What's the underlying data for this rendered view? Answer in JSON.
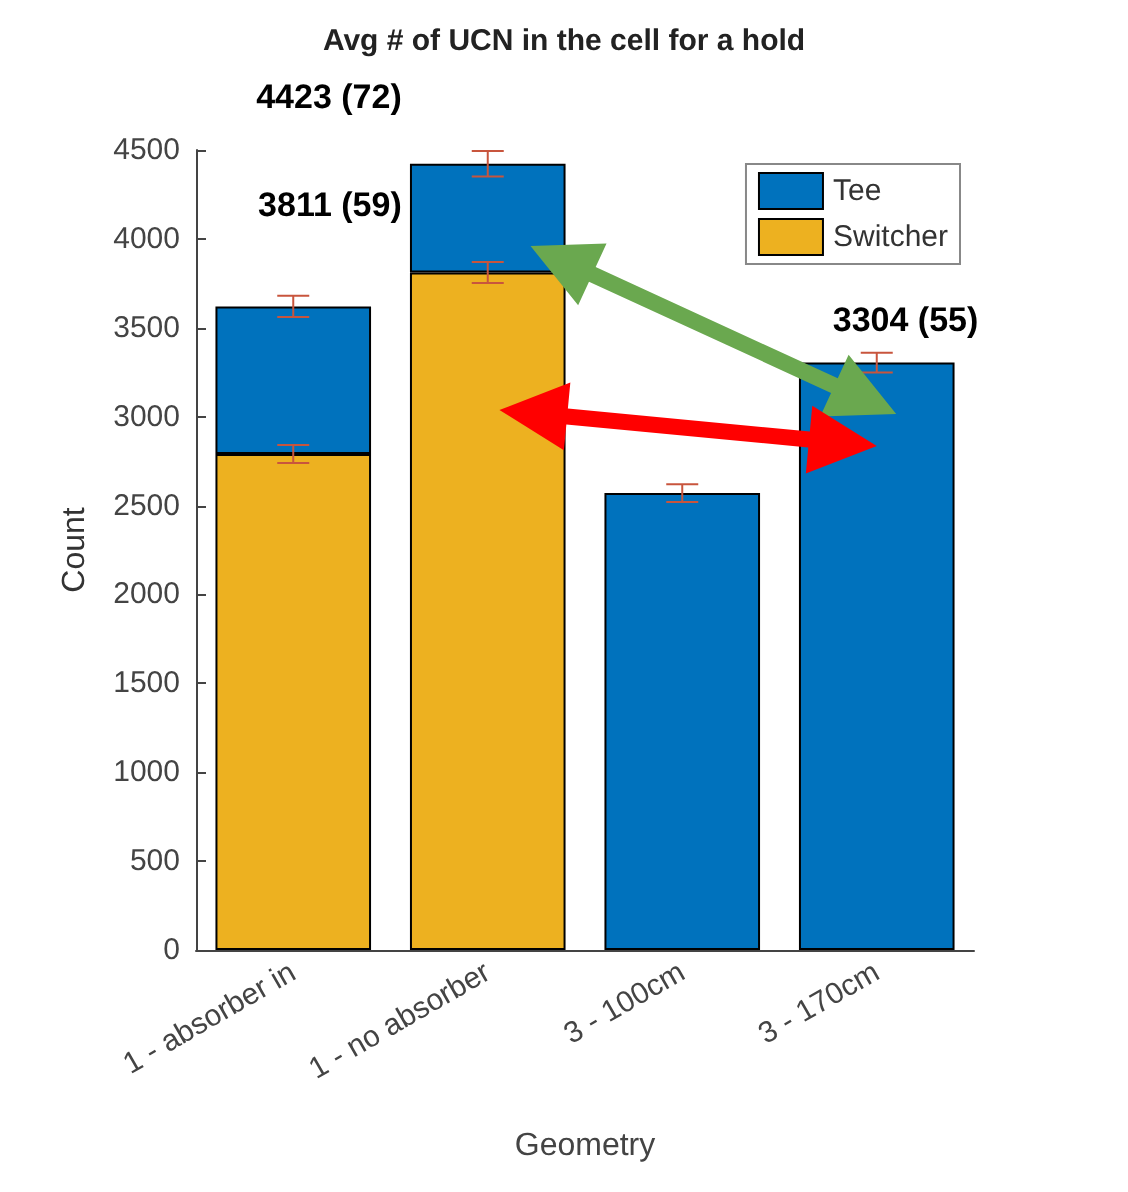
{
  "chart_data": {
    "type": "bar",
    "title": "Avg # of UCN in the cell for a hold",
    "xlabel": "Geometry",
    "ylabel": "Count",
    "categories": [
      "1 - absorber in",
      "1 - no absorber",
      "3 - 100cm",
      "3 - 170cm"
    ],
    "stacked": true,
    "series": [
      {
        "name": "Switcher",
        "color": "#edb120",
        "values": [
          2790,
          3811,
          null,
          null
        ],
        "errors": [
          50,
          59,
          null,
          null
        ]
      },
      {
        "name": "Tee",
        "color": "#0072bd",
        "values": [
          830,
          612,
          2570,
          3304
        ],
        "errors": [
          60,
          72,
          50,
          55
        ]
      }
    ],
    "ylim": [
      0,
      4500
    ],
    "yticks": [
      0,
      500,
      1000,
      1500,
      2000,
      2500,
      3000,
      3500,
      4000,
      4500
    ],
    "legend": "top right",
    "grid": false,
    "annotations": [
      {
        "text": "4423 (72)",
        "x": "1 - no absorber",
        "y": 4423
      },
      {
        "text": "3811 (59)",
        "x": "1 - no absorber",
        "y": 3811
      },
      {
        "text": "3304 (55)",
        "x": "3 - 170cm",
        "y": 3304
      }
    ]
  }
}
